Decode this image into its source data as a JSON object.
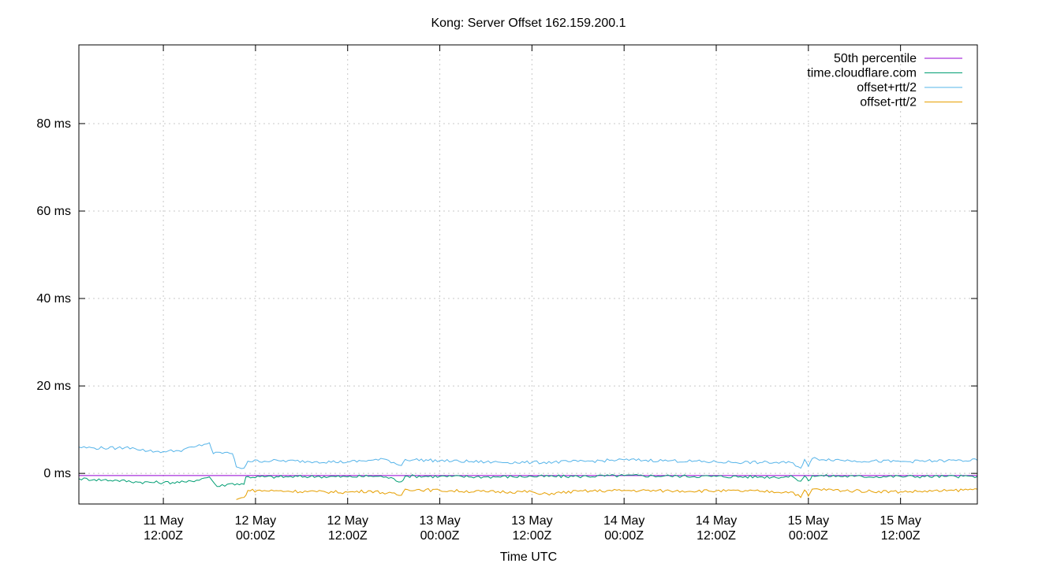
{
  "chart_data": {
    "type": "line",
    "title": "Kong: Server Offset 162.159.200.1",
    "xlabel": "Time UTC",
    "ylabel": "",
    "y_unit": "ms",
    "ylim": [
      -7,
      98
    ],
    "xlim": [
      "2024-05-11 01:00",
      "2024-05-15 22:00"
    ],
    "grid": true,
    "legend_position": "top-right",
    "y_ticks": [
      {
        "value": 0,
        "label": "0 ms"
      },
      {
        "value": 20,
        "label": "20 ms"
      },
      {
        "value": 40,
        "label": "40 ms"
      },
      {
        "value": 60,
        "label": "60 ms"
      },
      {
        "value": 80,
        "label": "80 ms"
      }
    ],
    "x_ticks": [
      {
        "value": "2024-05-11 12:00",
        "line1": "11 May",
        "line2": "12:00Z"
      },
      {
        "value": "2024-05-12 00:00",
        "line1": "12 May",
        "line2": "00:00Z"
      },
      {
        "value": "2024-05-12 12:00",
        "line1": "12 May",
        "line2": "12:00Z"
      },
      {
        "value": "2024-05-13 00:00",
        "line1": "13 May",
        "line2": "00:00Z"
      },
      {
        "value": "2024-05-13 12:00",
        "line1": "13 May",
        "line2": "12:00Z"
      },
      {
        "value": "2024-05-14 00:00",
        "line1": "14 May",
        "line2": "00:00Z"
      },
      {
        "value": "2024-05-14 12:00",
        "line1": "14 May",
        "line2": "12:00Z"
      },
      {
        "value": "2024-05-15 00:00",
        "line1": "15 May",
        "line2": "00:00Z"
      },
      {
        "value": "2024-05-15 12:00",
        "line1": "15 May",
        "line2": "12:00Z"
      }
    ],
    "series": [
      {
        "name": "50th percentile",
        "color": "#9400d3",
        "points": [
          [
            "2024-05-11 01:00",
            -0.5
          ],
          [
            "2024-05-15 22:00",
            -0.5
          ]
        ]
      },
      {
        "name": "time.cloudflare.com",
        "color": "#009e73",
        "points": [
          [
            "2024-05-11 01:00",
            -1.2
          ],
          [
            "2024-05-11 03:00",
            -1.4
          ],
          [
            "2024-05-11 06:00",
            -1.6
          ],
          [
            "2024-05-11 09:00",
            -2.0
          ],
          [
            "2024-05-11 12:00",
            -2.1
          ],
          [
            "2024-05-11 15:00",
            -2.0
          ],
          [
            "2024-05-11 17:00",
            -1.2
          ],
          [
            "2024-05-11 18:00",
            -0.8
          ],
          [
            "2024-05-11 19:00",
            -3.0
          ],
          [
            "2024-05-11 21:00",
            -2.3
          ],
          [
            "2024-05-11 22:30",
            -2.5
          ],
          [
            "2024-05-11 22:45",
            -0.8
          ],
          [
            "2024-05-12 03:00",
            -0.8
          ],
          [
            "2024-05-12 08:00",
            -0.7
          ],
          [
            "2024-05-12 12:00",
            -0.8
          ],
          [
            "2024-05-12 15:00",
            -0.6
          ],
          [
            "2024-05-12 17:00",
            -0.8
          ],
          [
            "2024-05-12 19:00",
            -1.9
          ],
          [
            "2024-05-12 19:30",
            -0.6
          ],
          [
            "2024-05-13 00:00",
            -0.7
          ],
          [
            "2024-05-13 06:00",
            -0.8
          ],
          [
            "2024-05-13 12:00",
            -0.7
          ],
          [
            "2024-05-13 18:00",
            -0.7
          ],
          [
            "2024-05-14 00:00",
            -0.5
          ],
          [
            "2024-05-14 06:00",
            -0.6
          ],
          [
            "2024-05-14 12:00",
            -0.7
          ],
          [
            "2024-05-14 18:00",
            -0.8
          ],
          [
            "2024-05-14 22:00",
            -0.8
          ],
          [
            "2024-05-14 23:00",
            -1.8
          ],
          [
            "2024-05-14 23:30",
            -0.6
          ],
          [
            "2024-05-15 00:00",
            -1.7
          ],
          [
            "2024-05-15 00:30",
            -0.5
          ],
          [
            "2024-05-15 06:00",
            -0.7
          ],
          [
            "2024-05-15 12:00",
            -0.7
          ],
          [
            "2024-05-15 18:00",
            -0.7
          ],
          [
            "2024-05-15 22:00",
            -0.7
          ]
        ]
      },
      {
        "name": "offset+rtt/2",
        "color": "#56b4e9",
        "points": [
          [
            "2024-05-11 01:00",
            6.0
          ],
          [
            "2024-05-11 03:00",
            5.8
          ],
          [
            "2024-05-11 06:00",
            5.8
          ],
          [
            "2024-05-11 08:00",
            5.9
          ],
          [
            "2024-05-11 10:00",
            5.1
          ],
          [
            "2024-05-11 12:00",
            5.0
          ],
          [
            "2024-05-11 14:00",
            5.2
          ],
          [
            "2024-05-11 16:00",
            6.0
          ],
          [
            "2024-05-11 18:00",
            7.0
          ],
          [
            "2024-05-11 18:30",
            4.5
          ],
          [
            "2024-05-11 20:00",
            4.8
          ],
          [
            "2024-05-11 21:00",
            4.5
          ],
          [
            "2024-05-11 21:30",
            1.5
          ],
          [
            "2024-05-11 22:30",
            1.2
          ],
          [
            "2024-05-11 23:00",
            2.8
          ],
          [
            "2024-05-12 03:00",
            2.9
          ],
          [
            "2024-05-12 08:00",
            2.7
          ],
          [
            "2024-05-12 12:00",
            2.6
          ],
          [
            "2024-05-12 15:00",
            3.0
          ],
          [
            "2024-05-12 17:00",
            3.2
          ],
          [
            "2024-05-12 19:00",
            1.8
          ],
          [
            "2024-05-12 19:30",
            3.2
          ],
          [
            "2024-05-13 00:00",
            2.9
          ],
          [
            "2024-05-13 06:00",
            2.6
          ],
          [
            "2024-05-13 12:00",
            2.5
          ],
          [
            "2024-05-13 18:00",
            2.7
          ],
          [
            "2024-05-14 00:00",
            3.1
          ],
          [
            "2024-05-14 06:00",
            2.9
          ],
          [
            "2024-05-14 12:00",
            2.6
          ],
          [
            "2024-05-14 18:00",
            2.5
          ],
          [
            "2024-05-14 22:00",
            2.4
          ],
          [
            "2024-05-14 23:00",
            1.2
          ],
          [
            "2024-05-14 23:30",
            3.2
          ],
          [
            "2024-05-15 00:00",
            1.6
          ],
          [
            "2024-05-15 00:30",
            3.4
          ],
          [
            "2024-05-15 06:00",
            2.9
          ],
          [
            "2024-05-15 12:00",
            2.7
          ],
          [
            "2024-05-15 18:00",
            2.9
          ],
          [
            "2024-05-15 22:00",
            3.0
          ]
        ]
      },
      {
        "name": "offset-rtt/2",
        "color": "#e69f00",
        "points": [
          [
            "2024-05-11 21:30",
            -6.0
          ],
          [
            "2024-05-11 22:30",
            -5.5
          ],
          [
            "2024-05-11 23:00",
            -3.9
          ],
          [
            "2024-05-12 03:00",
            -4.0
          ],
          [
            "2024-05-12 08:00",
            -4.2
          ],
          [
            "2024-05-12 12:00",
            -4.3
          ],
          [
            "2024-05-12 15:00",
            -4.0
          ],
          [
            "2024-05-12 19:00",
            -5.0
          ],
          [
            "2024-05-12 19:30",
            -3.6
          ],
          [
            "2024-05-13 00:00",
            -3.9
          ],
          [
            "2024-05-13 06:00",
            -4.2
          ],
          [
            "2024-05-13 12:00",
            -4.2
          ],
          [
            "2024-05-13 13:00",
            -4.8
          ],
          [
            "2024-05-13 18:00",
            -4.1
          ],
          [
            "2024-05-14 00:00",
            -3.9
          ],
          [
            "2024-05-14 06:00",
            -4.0
          ],
          [
            "2024-05-14 12:00",
            -4.0
          ],
          [
            "2024-05-14 18:00",
            -4.1
          ],
          [
            "2024-05-14 22:00",
            -4.3
          ],
          [
            "2024-05-14 23:00",
            -5.5
          ],
          [
            "2024-05-14 23:30",
            -3.8
          ],
          [
            "2024-05-15 00:00",
            -5.2
          ],
          [
            "2024-05-15 00:30",
            -3.6
          ],
          [
            "2024-05-15 06:00",
            -4.0
          ],
          [
            "2024-05-15 12:00",
            -4.2
          ],
          [
            "2024-05-15 18:00",
            -4.0
          ],
          [
            "2024-05-15 22:00",
            -3.6
          ]
        ]
      }
    ]
  }
}
